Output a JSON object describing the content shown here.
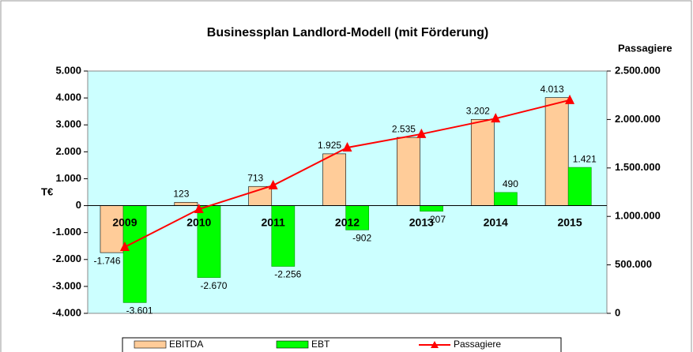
{
  "chart_data": {
    "type": "bar_line",
    "title": "Businessplan Landlord-Modell (mit Förderung)",
    "y_label": "T€",
    "y2_label": "Passagiere",
    "categories": [
      "2009",
      "2010",
      "2011",
      "2012",
      "2013",
      "2014",
      "2015"
    ],
    "series": [
      {
        "name": "EBITDA",
        "color": "#ffcc99",
        "values": [
          -1746,
          123,
          713,
          1925,
          2535,
          3202,
          4013
        ],
        "value_labels": [
          "-1.746",
          "123",
          "713",
          "1.925",
          "2.535",
          "3.202",
          "4.013"
        ]
      },
      {
        "name": "EBT",
        "color": "#00ff00",
        "values": [
          -3601,
          -2670,
          -2256,
          -902,
          -207,
          490,
          1421
        ],
        "value_labels": [
          "-3.601",
          "-2.670",
          "-2.256",
          "-902",
          "-207",
          "490",
          "1.421"
        ]
      },
      {
        "name": "Passagiere",
        "color": "#ff0000",
        "axis": "y2",
        "values": [
          684000,
          1075000,
          1320000,
          1710000,
          1850000,
          2010000,
          2200000
        ]
      }
    ],
    "ylim": [
      -4000,
      5000
    ],
    "yticks": [
      {
        "value": -4000,
        "label": "-4.000"
      },
      {
        "value": -3000,
        "label": "-3.000"
      },
      {
        "value": -2000,
        "label": "-2.000"
      },
      {
        "value": -1000,
        "label": "-1.000"
      },
      0,
      {
        "value": 1000,
        "label": "1.000"
      },
      {
        "value": 2000,
        "label": "2.000"
      },
      {
        "value": 3000,
        "label": "3.000"
      },
      {
        "value": 4000,
        "label": "4.000"
      },
      {
        "value": 5000,
        "label": "5.000"
      }
    ],
    "y2lim": [
      0,
      2500000
    ],
    "y2ticks": [
      0,
      {
        "value": 500000,
        "label": "500.000"
      },
      {
        "value": 1000000,
        "label": "1.000.000"
      },
      {
        "value": 1500000,
        "label": "1.500.000"
      },
      {
        "value": 2000000,
        "label": "2.000.000"
      },
      {
        "value": 2500000,
        "label": "2.500.000"
      }
    ],
    "plot_background": "#ccffff"
  }
}
